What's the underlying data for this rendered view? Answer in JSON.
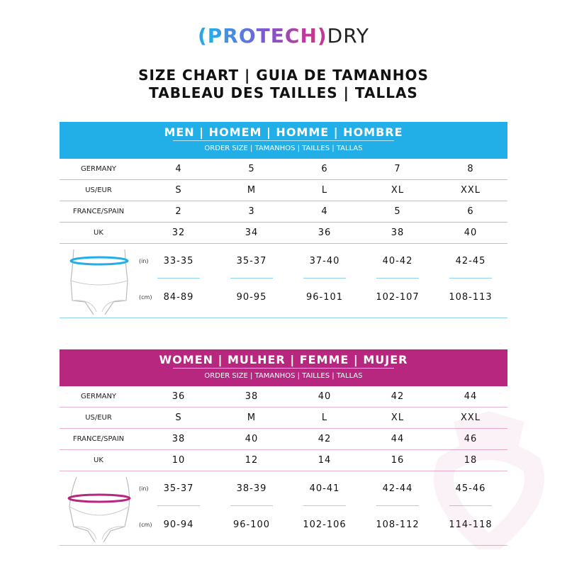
{
  "logo": {
    "open": "(",
    "brand": "PROTECH",
    "close": ")",
    "suffix": "DRY"
  },
  "titles": [
    "SIZE CHART | GUIA DE TAMANHOS",
    "TABLEAU DES TAILLES | TALLAS"
  ],
  "colors": {
    "men_accent": "#22aee6",
    "women_accent": "#b7267f"
  },
  "men": {
    "heading": "MEN | HOMEM | HOMME | HOMBRE",
    "subheading": "ORDER SIZE | TAMANHOS | TAILLES | TALLAS",
    "rows": [
      {
        "label": "GERMANY",
        "values": [
          "4",
          "5",
          "6",
          "7",
          "8"
        ]
      },
      {
        "label": "US/EUR",
        "values": [
          "S",
          "M",
          "L",
          "XL",
          "XXL"
        ]
      },
      {
        "label": "FRANCE/SPAIN",
        "values": [
          "2",
          "3",
          "4",
          "5",
          "6"
        ]
      },
      {
        "label": "UK",
        "values": [
          "32",
          "34",
          "36",
          "38",
          "40"
        ]
      }
    ],
    "in_unit": "(in)",
    "in_values": [
      "33-35",
      "35-37",
      "37-40",
      "40-42",
      "42-45"
    ],
    "cm_unit": "(cm)",
    "cm_values": [
      "84-89",
      "90-95",
      "96-101",
      "102-107",
      "108-113"
    ]
  },
  "women": {
    "heading": "WOMEN | MULHER | FEMME | MUJER",
    "subheading": "ORDER SIZE | TAMANHOS | TAILLES | TALLAS",
    "rows": [
      {
        "label": "GERMANY",
        "values": [
          "36",
          "38",
          "40",
          "42",
          "44"
        ]
      },
      {
        "label": "US/EUR",
        "values": [
          "S",
          "M",
          "L",
          "XL",
          "XXL"
        ]
      },
      {
        "label": "FRANCE/SPAIN",
        "values": [
          "38",
          "40",
          "42",
          "44",
          "46"
        ]
      },
      {
        "label": "UK",
        "values": [
          "10",
          "12",
          "14",
          "16",
          "18"
        ]
      }
    ],
    "in_unit": "(in)",
    "in_values": [
      "35-37",
      "38-39",
      "40-41",
      "42-44",
      "45-46"
    ],
    "cm_unit": "(cm)",
    "cm_values": [
      "90-94",
      "96-100",
      "102-106",
      "108-112",
      "114-118"
    ]
  }
}
